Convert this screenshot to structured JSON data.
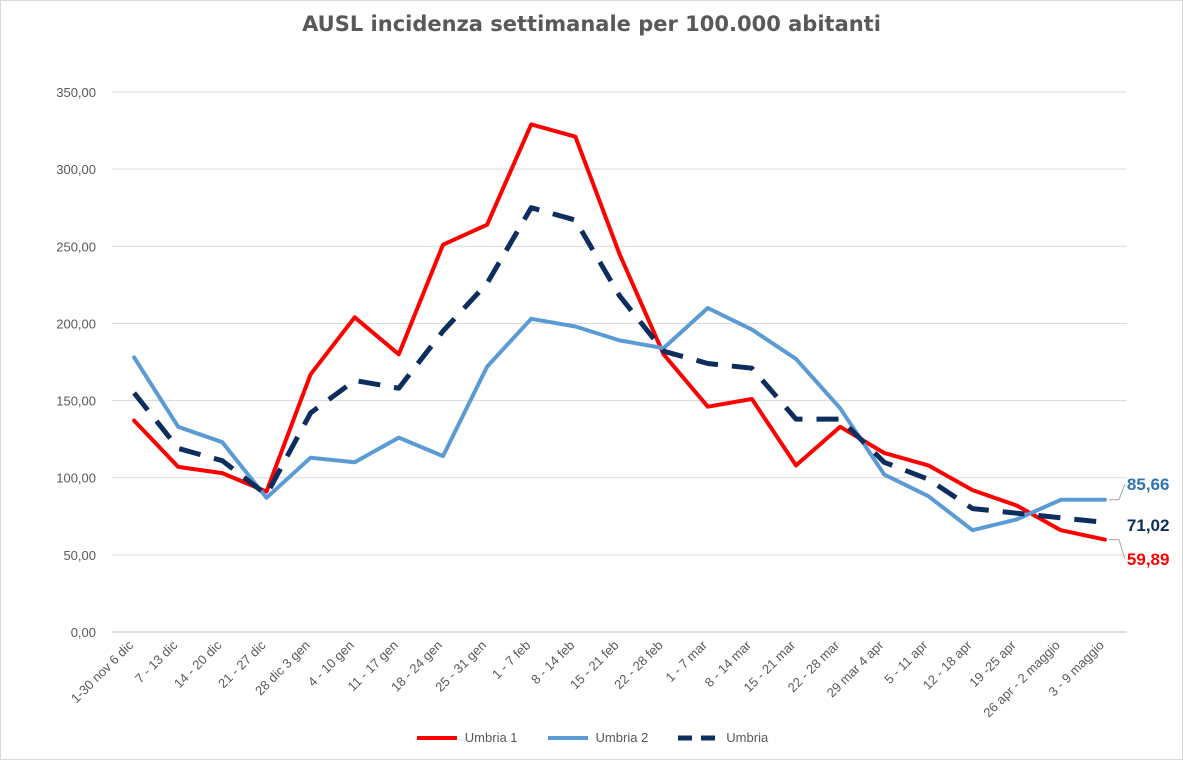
{
  "chart_data": {
    "type": "line",
    "title": "AUSL incidenza settimanale per 100.000 abitanti",
    "xlabel": "",
    "ylabel": "",
    "ylim": [
      0,
      350
    ],
    "yticks": [
      "0,00",
      "50,00",
      "100,00",
      "150,00",
      "200,00",
      "250,00",
      "300,00",
      "350,00"
    ],
    "grid": true,
    "legend_position": "bottom",
    "categories": [
      "1-30 nov 6 dic",
      "7 - 13 dic",
      "14 - 20 dic",
      "21 - 27 dic",
      "28 dic 3 gen",
      "4 - 10 gen",
      "11 - 17 gen",
      "18 - 24 gen",
      "25 - 31 gen",
      "1 - 7 feb",
      "8 - 14 feb",
      "15 - 21 feb",
      "22 - 28 feb",
      "1 - 7 mar",
      "8 - 14 mar",
      "15 - 21 mar",
      "22 - 28 mar",
      "29 mar 4 apr",
      "5 - 11 apr",
      "12 - 18 apr",
      "19 -25 apr",
      "26 apr - 2 maggio",
      "3 - 9 maggio"
    ],
    "series": [
      {
        "name": "Umbria 1",
        "color": "#ff0000",
        "style": "solid",
        "values": [
          137,
          107,
          103,
          91,
          167,
          204,
          180,
          251,
          264,
          329,
          321,
          245,
          180,
          146,
          151,
          108,
          133,
          116,
          108,
          92,
          82,
          66,
          59.89
        ],
        "end_label": "59,89"
      },
      {
        "name": "Umbria 2",
        "color": "#5b9bd5",
        "style": "solid",
        "values": [
          178,
          133,
          123,
          87,
          113,
          110,
          126,
          114,
          172,
          203,
          198,
          189,
          184,
          210,
          196,
          177,
          145,
          102,
          88,
          66,
          73,
          85.66,
          85.66
        ],
        "end_label": "85,66"
      },
      {
        "name": "Umbria",
        "color": "#0d2d5e",
        "style": "dashed",
        "values": [
          155,
          119,
          111,
          89,
          142,
          163,
          158,
          195,
          226,
          275,
          267,
          218,
          182,
          174,
          171,
          138,
          138,
          110,
          99,
          80,
          77,
          74,
          71.02
        ],
        "end_label": "71,02"
      }
    ]
  }
}
